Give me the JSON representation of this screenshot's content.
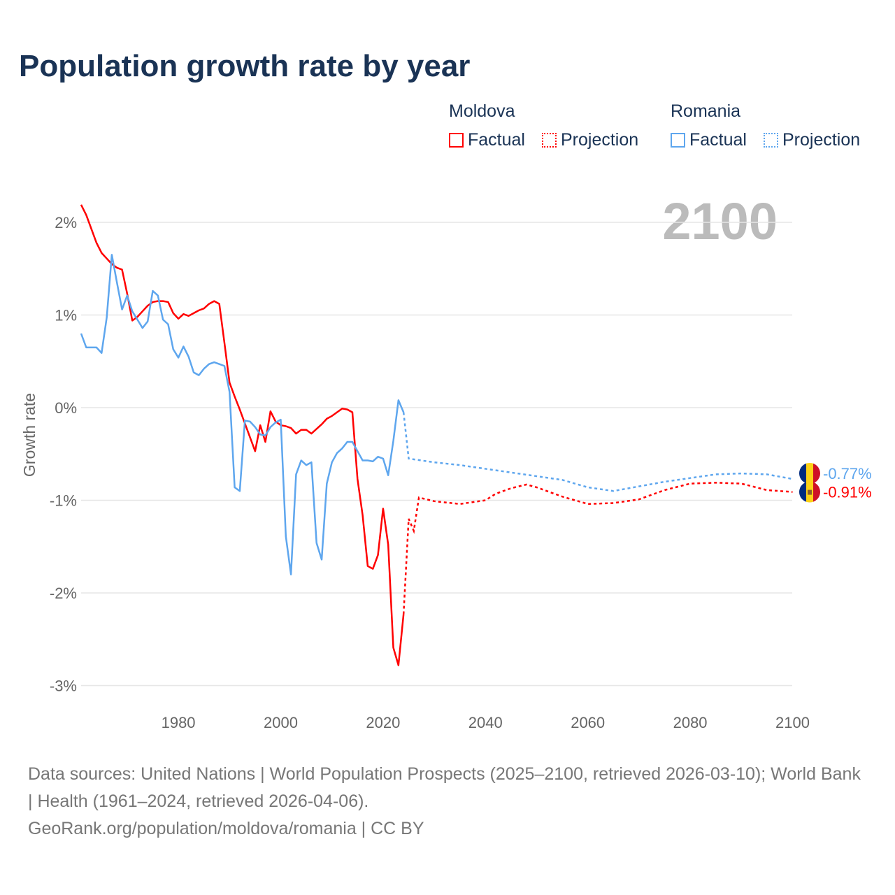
{
  "title": "Population growth rate by year",
  "legend": {
    "groups": [
      {
        "name": "Moldova",
        "color": "#ff0000",
        "factual": "Factual",
        "projection": "Projection"
      },
      {
        "name": "Romania",
        "color": "#5ea6ee",
        "factual": "Factual",
        "projection": "Projection"
      }
    ]
  },
  "year_label": "2100",
  "source_lines": [
    "Data sources: United Nations | World Population Prospects (2025–2100, retrieved 2026-03-10); World Bank | Health (1961–2024, retrieved 2026-04-06).",
    "GeoRank.org/population/moldova/romania | CC BY"
  ],
  "chart_data": {
    "type": "line",
    "title": "Population growth rate by year",
    "xlabel": "",
    "ylabel": "Growth rate",
    "xlim": [
      1961,
      2100
    ],
    "ylim": [
      -3.3,
      2.2
    ],
    "xticks": [
      1980,
      2000,
      2020,
      2040,
      2060,
      2080,
      2100
    ],
    "yticks": [
      2,
      1,
      0,
      -1,
      -2,
      -3
    ],
    "ytick_labels": [
      "2%",
      "1%",
      "0%",
      "-1%",
      "-2%",
      "-3%"
    ],
    "grid": true,
    "series": [
      {
        "name": "Moldova",
        "color": "#ff0000",
        "end_label": "-0.91%",
        "factual": {
          "start": 1961,
          "values": [
            2.19,
            2.08,
            1.93,
            1.78,
            1.67,
            1.61,
            1.55,
            1.51,
            1.49,
            1.23,
            0.94,
            0.98,
            1.04,
            1.1,
            1.14,
            1.15,
            1.15,
            1.14,
            1.02,
            0.96,
            1.01,
            0.99,
            1.02,
            1.05,
            1.07,
            1.12,
            1.15,
            1.12,
            0.7,
            0.27,
            0.12,
            -0.02,
            -0.17,
            -0.32,
            -0.47,
            -0.19,
            -0.37,
            -0.04,
            -0.15,
            -0.19,
            -0.2,
            -0.22,
            -0.28,
            -0.24,
            -0.24,
            -0.28,
            -0.23,
            -0.18,
            -0.12,
            -0.09,
            -0.05,
            -0.01,
            -0.02,
            -0.05,
            -0.77,
            -1.16,
            -1.71,
            -1.74,
            -1.59,
            -1.09,
            -1.48,
            -2.59,
            -2.78,
            -2.23
          ]
        },
        "projection": {
          "x": [
            2024,
            2025,
            2026,
            2027,
            2030,
            2035,
            2040,
            2042,
            2045,
            2048,
            2050,
            2055,
            2060,
            2065,
            2070,
            2075,
            2080,
            2085,
            2090,
            2095,
            2100
          ],
          "values": [
            -2.23,
            -1.2,
            -1.33,
            -0.97,
            -1.01,
            -1.04,
            -1.0,
            -0.93,
            -0.87,
            -0.83,
            -0.86,
            -0.96,
            -1.04,
            -1.03,
            -0.99,
            -0.89,
            -0.82,
            -0.81,
            -0.82,
            -0.89,
            -0.91
          ]
        }
      },
      {
        "name": "Romania",
        "color": "#5ea6ee",
        "end_label": "-0.77%",
        "factual": {
          "start": 1961,
          "values": [
            0.8,
            0.65,
            0.65,
            0.65,
            0.59,
            0.97,
            1.65,
            1.35,
            1.06,
            1.21,
            1.04,
            0.95,
            0.86,
            0.93,
            1.26,
            1.21,
            0.95,
            0.9,
            0.63,
            0.54,
            0.66,
            0.55,
            0.38,
            0.35,
            0.42,
            0.47,
            0.49,
            0.47,
            0.45,
            0.17,
            -0.86,
            -0.9,
            -0.14,
            -0.15,
            -0.21,
            -0.29,
            -0.3,
            -0.21,
            -0.16,
            -0.13,
            -1.39,
            -1.8,
            -0.72,
            -0.57,
            -0.62,
            -0.59,
            -1.46,
            -1.64,
            -0.82,
            -0.59,
            -0.49,
            -0.44,
            -0.37,
            -0.37,
            -0.47,
            -0.57,
            -0.57,
            -0.58,
            -0.53,
            -0.55,
            -0.73,
            -0.36,
            0.08,
            -0.05
          ]
        },
        "projection": {
          "x": [
            2024,
            2025,
            2030,
            2035,
            2040,
            2045,
            2050,
            2055,
            2060,
            2065,
            2070,
            2075,
            2080,
            2085,
            2090,
            2095,
            2100
          ],
          "values": [
            -0.05,
            -0.55,
            -0.59,
            -0.62,
            -0.66,
            -0.7,
            -0.74,
            -0.78,
            -0.86,
            -0.9,
            -0.85,
            -0.8,
            -0.76,
            -0.72,
            -0.71,
            -0.72,
            -0.77
          ]
        }
      }
    ]
  }
}
